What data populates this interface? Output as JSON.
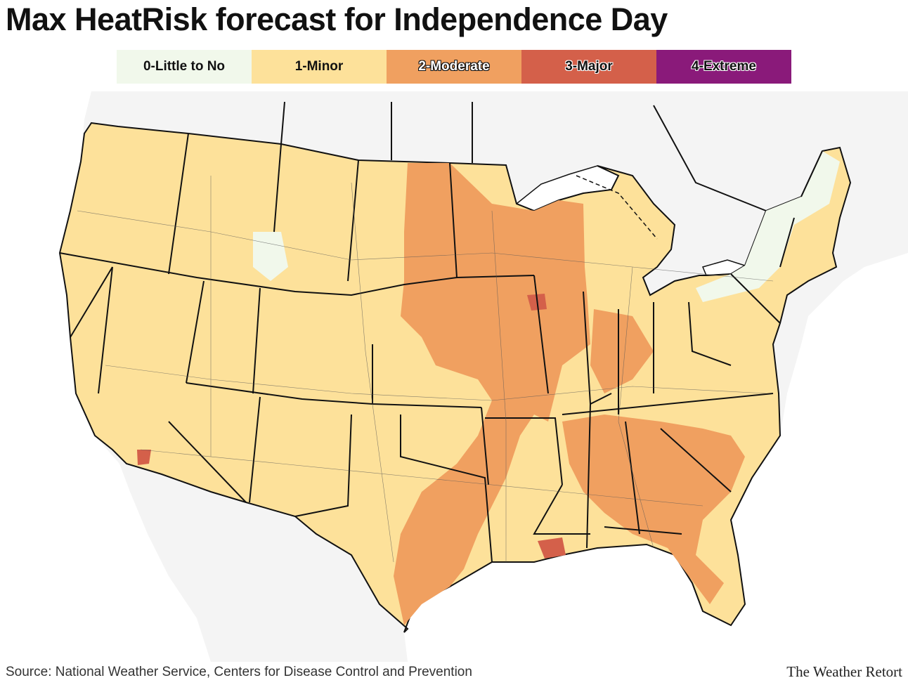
{
  "title": "Max HeatRisk forecast for Independence Day",
  "legend": [
    {
      "label": "0-Little to No",
      "color": "#f1f8eb"
    },
    {
      "label": "1-Minor",
      "color": "#fde19a"
    },
    {
      "label": "2-Moderate",
      "color": "#f0a060"
    },
    {
      "label": "3-Major",
      "color": "#d4604a"
    },
    {
      "label": "4-Extreme",
      "color": "#8a1a7a"
    }
  ],
  "map": {
    "land_color": "#f4f4f4",
    "water_color": "#ffffff",
    "border_color": "#111111",
    "road_color": "#555555"
  },
  "footer": {
    "source": "Source: National Weather Service, Centers for Disease Control and Prevention",
    "brand": "The Weather Retort"
  }
}
